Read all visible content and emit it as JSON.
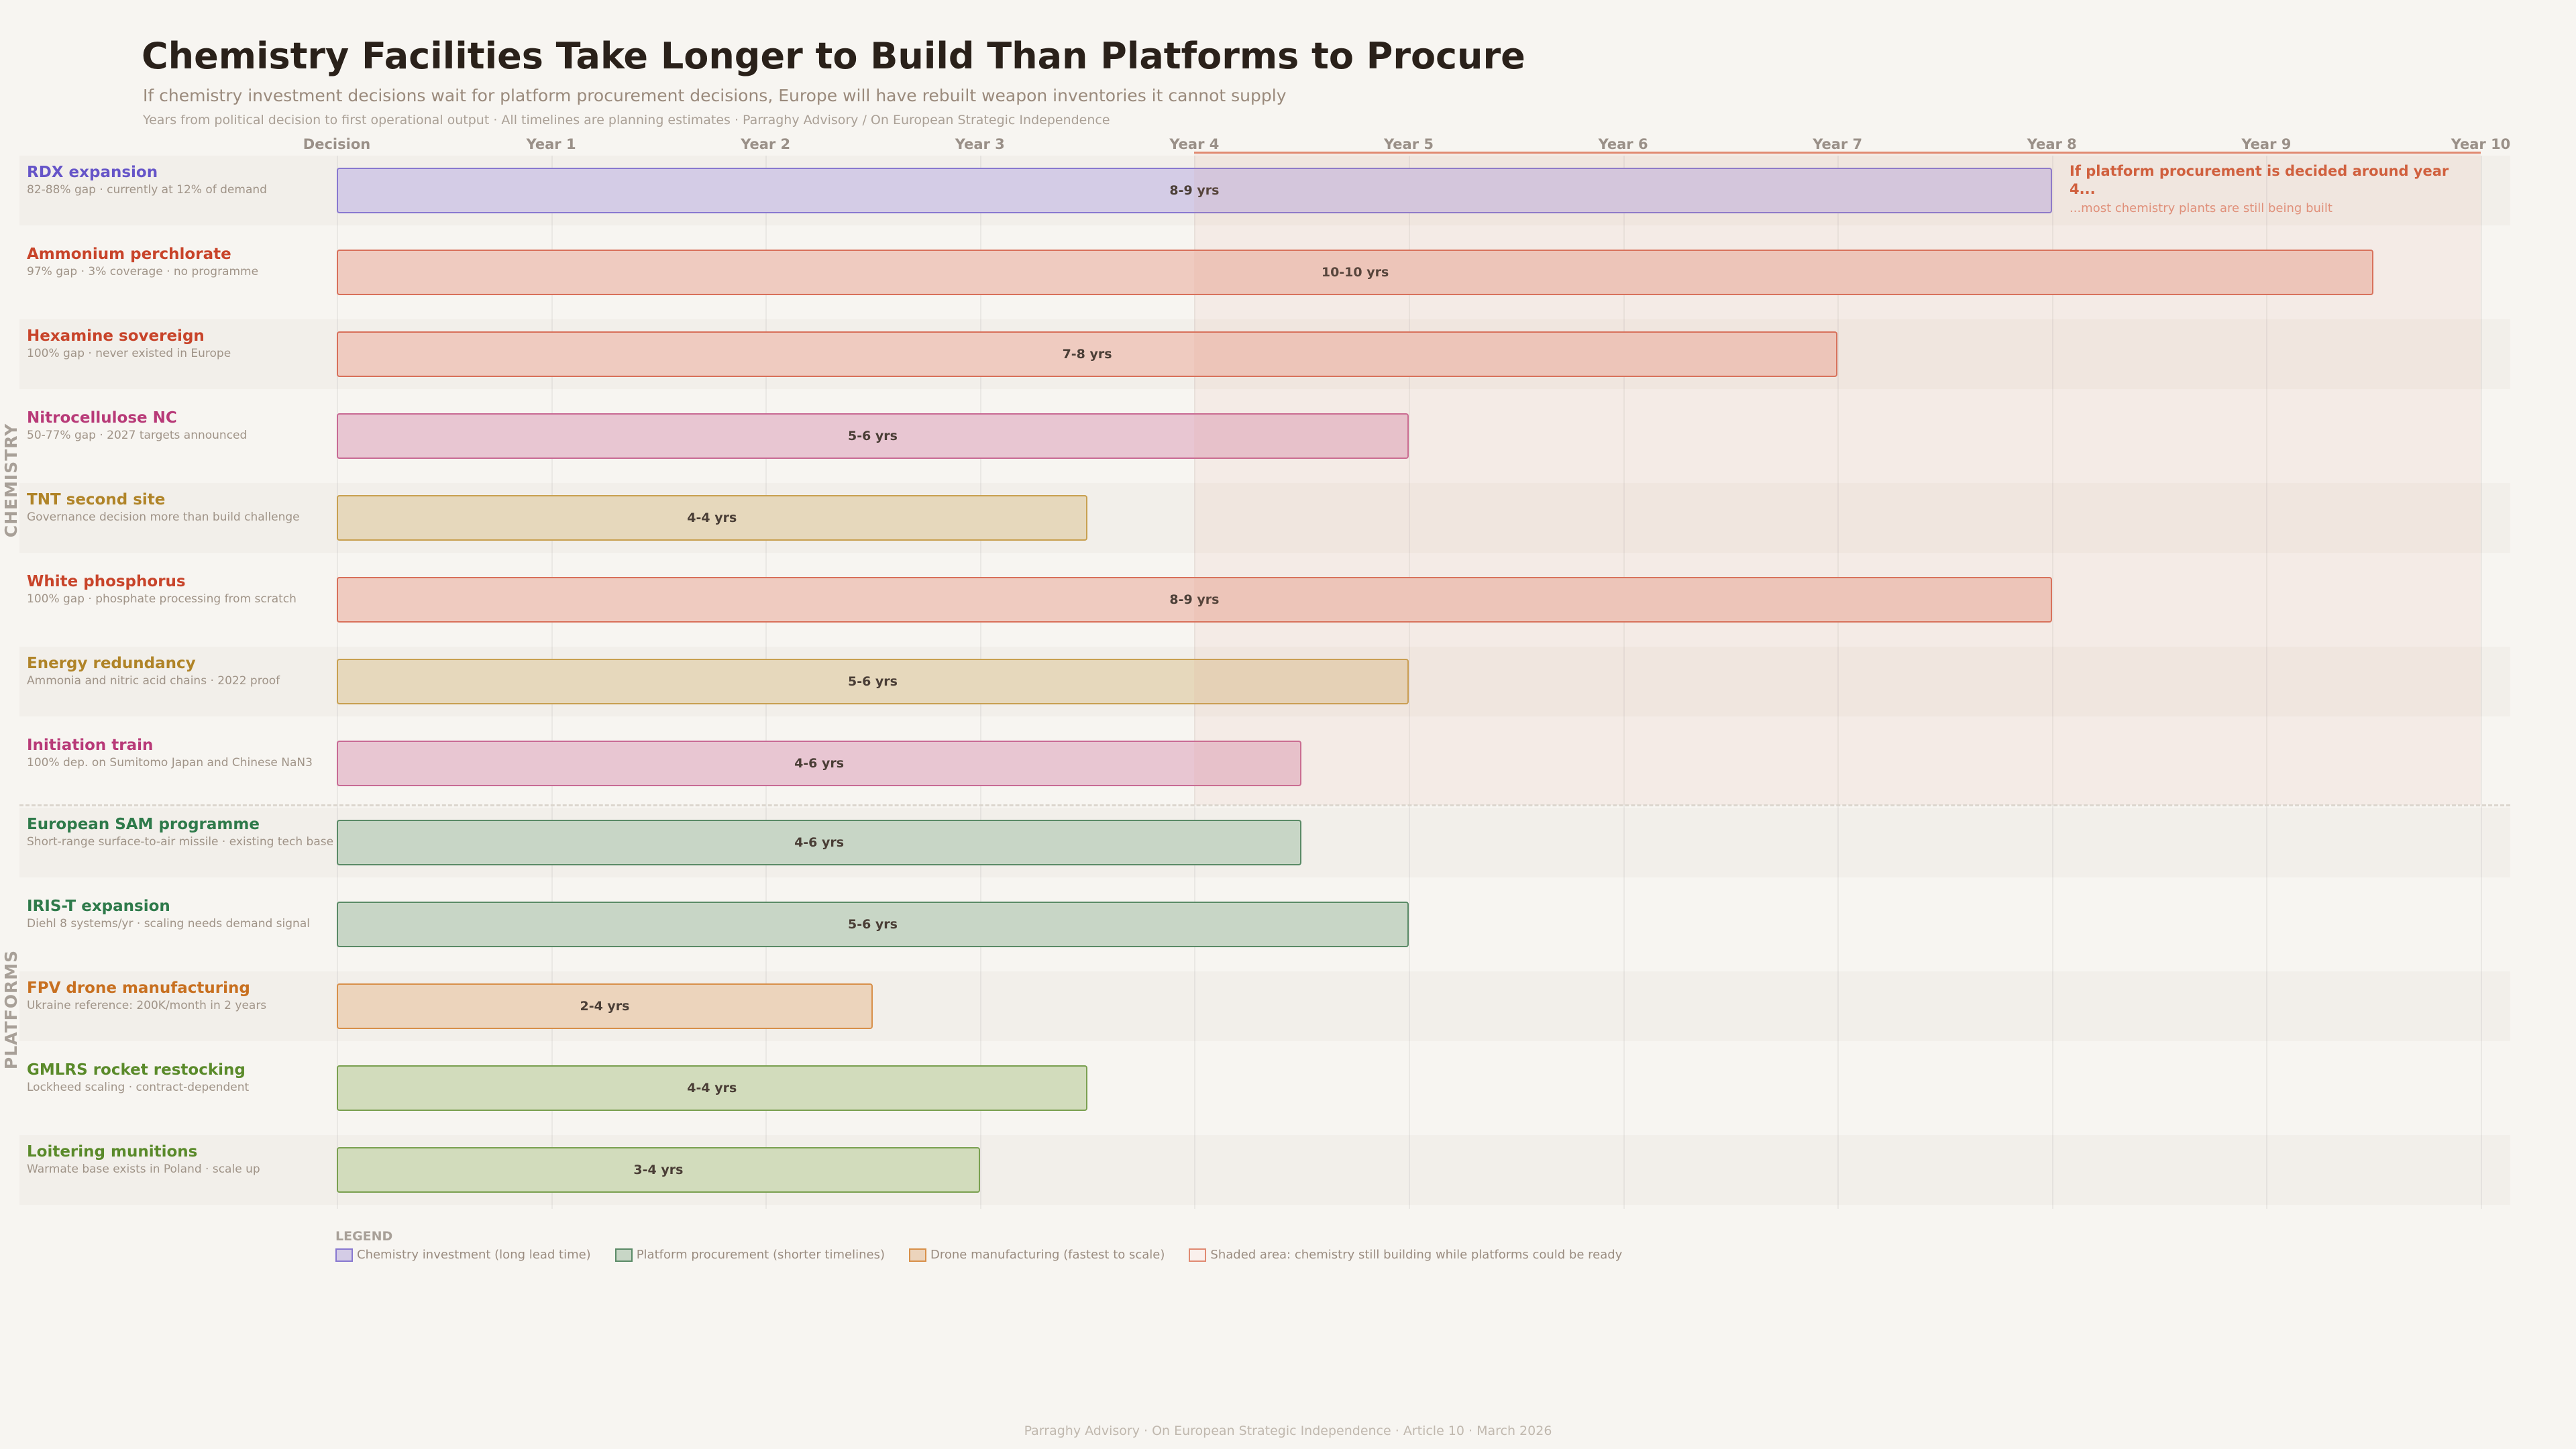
{
  "header": {
    "title": "Chemistry Facilities Take Longer to Build Than Platforms to Procure",
    "subtitle": "If chemistry investment decisions wait for platform procurement decisions, Europe will have rebuilt weapon inventories it cannot supply",
    "meta": "Years from political decision to first operational output  ·  All timelines are planning estimates  ·  Parraghy Advisory / On European Strategic Independence"
  },
  "annotation": {
    "line1": "If platform procurement is decided around year 4...",
    "line2": "...most chemistry plants are still being built"
  },
  "sections": {
    "chemistry": "CHEMISTRY",
    "platforms": "PLATFORMS"
  },
  "legend": {
    "title": "LEGEND",
    "items": [
      {
        "label": "Chemistry investment (long lead time)",
        "fill": "#d4cce6",
        "border": "#8878d0"
      },
      {
        "label": "Platform procurement (shorter timelines)",
        "fill": "#c8d6c6",
        "border": "#5a8a66"
      },
      {
        "label": "Drone manufacturing (fastest to scale)",
        "fill": "#ecd4bc",
        "border": "#d8904a"
      },
      {
        "label": "Shaded area: chemistry still building while platforms could be ready",
        "fill": "#faf0ec",
        "border": "#e08a72"
      }
    ]
  },
  "footer": "Parraghy Advisory  ·  On European Strategic Independence  ·  Article 10  ·  March 2026",
  "chart_data": {
    "type": "bar",
    "orientation": "horizontal-timeline",
    "x_ticks": [
      "Decision",
      "Year 1",
      "Year 2",
      "Year 3",
      "Year 4",
      "Year 5",
      "Year 6",
      "Year 7",
      "Year 8",
      "Year 9",
      "Year 10"
    ],
    "xlim": [
      0,
      10
    ],
    "shaded_region": {
      "from": 4,
      "to": 10
    },
    "grid": true,
    "rows": [
      {
        "section": "chemistry",
        "name": "RDX expansion",
        "sub": "82-88% gap  ·  currently at 12% of demand",
        "start": 0,
        "end": 8,
        "label": "8-9 yrs",
        "color": "#6655c8",
        "fill": "#d4cce6",
        "border": "#8878d0"
      },
      {
        "section": "chemistry",
        "name": "Ammonium perchlorate",
        "sub": "97% gap  ·  3% coverage  ·  no programme",
        "start": 0,
        "end": 9.5,
        "label": "10-10 yrs",
        "color": "#c8442a",
        "fill": "#efcbc0",
        "border": "#d8705a"
      },
      {
        "section": "chemistry",
        "name": "Hexamine sovereign",
        "sub": "100% gap  ·  never existed in Europe",
        "start": 0,
        "end": 7,
        "label": "7-8 yrs",
        "color": "#c8442a",
        "fill": "#efcbc0",
        "border": "#d8705a"
      },
      {
        "section": "chemistry",
        "name": "Nitrocellulose NC",
        "sub": "50-77% gap  ·  2027 targets announced",
        "start": 0,
        "end": 5,
        "label": "5-6 yrs",
        "color": "#b83a78",
        "fill": "#e8c6d2",
        "border": "#c86a94"
      },
      {
        "section": "chemistry",
        "name": "TNT second site",
        "sub": "Governance decision more than build challenge",
        "start": 0,
        "end": 3.5,
        "label": "4-4 yrs",
        "color": "#b08428",
        "fill": "#e6d8bc",
        "border": "#c8a050"
      },
      {
        "section": "chemistry",
        "name": "White phosphorus",
        "sub": "100% gap  ·  phosphate processing from scratch",
        "start": 0,
        "end": 8,
        "label": "8-9 yrs",
        "color": "#c8442a",
        "fill": "#efcbc0",
        "border": "#d8705a"
      },
      {
        "section": "chemistry",
        "name": "Energy redundancy",
        "sub": "Ammonia and nitric acid chains  ·  2022 proof",
        "start": 0,
        "end": 5,
        "label": "5-6 yrs",
        "color": "#b08428",
        "fill": "#e6d8bc",
        "border": "#c8a050"
      },
      {
        "section": "chemistry",
        "name": "Initiation train",
        "sub": "100% dep. on Sumitomo Japan and Chinese NaN3",
        "start": 0,
        "end": 4.5,
        "label": "4-6 yrs",
        "color": "#b83a78",
        "fill": "#e8c6d2",
        "border": "#c86a94"
      },
      {
        "section": "platforms",
        "name": "European SAM programme",
        "sub": "Short-range surface-to-air missile  ·  existing tech base",
        "start": 0,
        "end": 4.5,
        "label": "4-6 yrs",
        "color": "#2e7a4a",
        "fill": "#c8d6c6",
        "border": "#5a8a66"
      },
      {
        "section": "platforms",
        "name": "IRIS-T expansion",
        "sub": "Diehl 8 systems/yr  ·  scaling needs demand signal",
        "start": 0,
        "end": 5,
        "label": "5-6 yrs",
        "color": "#2e7a4a",
        "fill": "#c8d6c6",
        "border": "#5a8a66"
      },
      {
        "section": "platforms",
        "name": "FPV drone manufacturing",
        "sub": "Ukraine reference: 200K/month in 2 years",
        "start": 0,
        "end": 2.5,
        "label": "2-4 yrs",
        "color": "#c87020",
        "fill": "#ecd4bc",
        "border": "#d8904a"
      },
      {
        "section": "platforms",
        "name": "GMLRS rocket restocking",
        "sub": "Lockheed scaling  ·  contract-dependent",
        "start": 0,
        "end": 3.5,
        "label": "4-4 yrs",
        "color": "#5a8a2a",
        "fill": "#d2dcbc",
        "border": "#7aa050"
      },
      {
        "section": "platforms",
        "name": "Loitering munitions",
        "sub": "Warmate base exists in Poland  ·  scale up",
        "start": 0,
        "end": 3,
        "label": "3-4 yrs",
        "color": "#5a8a2a",
        "fill": "#d2dcbc",
        "border": "#7aa050"
      }
    ]
  }
}
